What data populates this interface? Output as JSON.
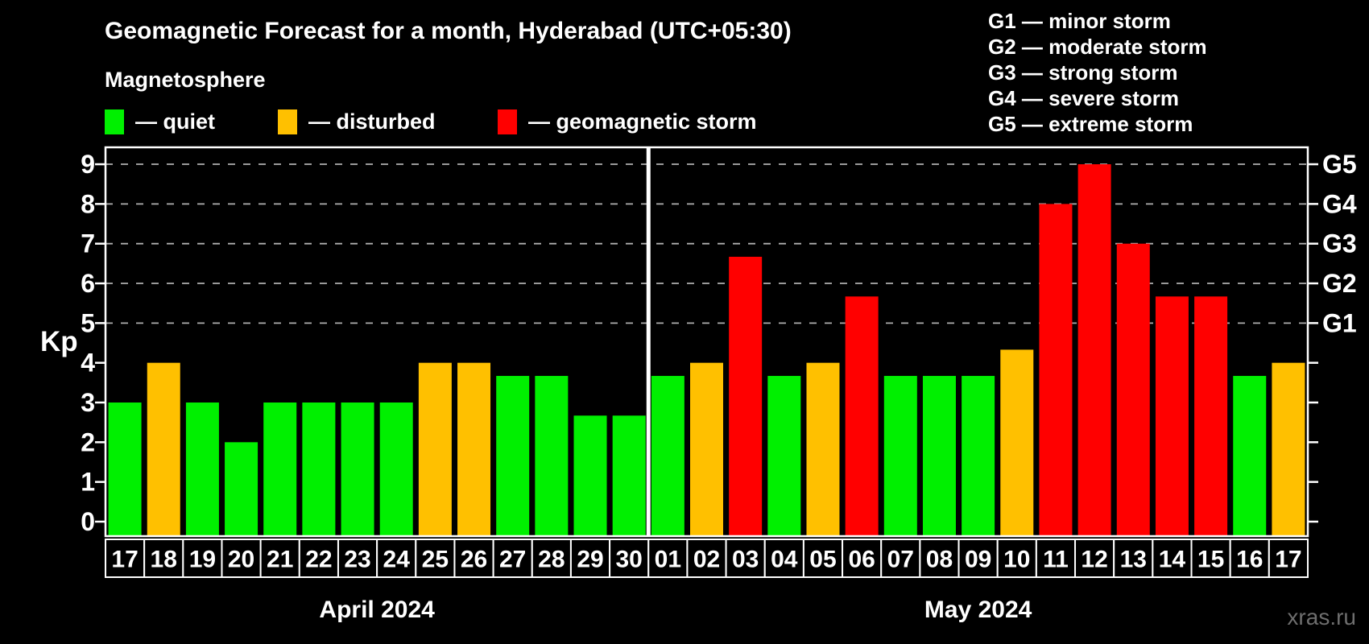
{
  "header": {
    "title": "Geomagnetic Forecast for a month, Hyderabad (UTC+05:30)",
    "subtitle": "Magnetosphere",
    "watermark": "xras.ru"
  },
  "legend": {
    "items": [
      {
        "name": "quiet",
        "label": "— quiet",
        "color": "#00f000"
      },
      {
        "name": "disturbed",
        "label": "— disturbed",
        "color": "#ffc000"
      },
      {
        "name": "storm",
        "label": "— geomagnetic storm",
        "color": "#ff0000"
      }
    ]
  },
  "g_legend": {
    "lines": [
      "G1 — minor storm",
      "G2 — moderate storm",
      "G3 — strong storm",
      "G4 — severe storm",
      "G5 — extreme storm"
    ]
  },
  "colors": {
    "quiet": "#00f000",
    "disturbed": "#ffc000",
    "storm": "#ff0000",
    "grid": "#b0b0b0",
    "axis": "#ffffff",
    "text": "#ffffff",
    "watermark": "#6e6e6e",
    "background": "#000000"
  },
  "chart_data": {
    "type": "bar",
    "title": "Geomagnetic Forecast for a month, Hyderabad (UTC+05:30)",
    "ylabel": "Kp",
    "ylim": [
      0,
      9
    ],
    "y_ticks": [
      0,
      1,
      2,
      3,
      4,
      5,
      6,
      7,
      8,
      9
    ],
    "grid_kp": [
      5,
      6,
      7,
      8,
      9
    ],
    "right_axis_labels": [
      {
        "label": "G1",
        "kp": 5
      },
      {
        "label": "G2",
        "kp": 6
      },
      {
        "label": "G3",
        "kp": 7
      },
      {
        "label": "G4",
        "kp": 8
      },
      {
        "label": "G5",
        "kp": 9
      }
    ],
    "months": [
      {
        "label": "April 2024",
        "days": 14
      },
      {
        "label": "May 2024",
        "days": 17
      }
    ],
    "bars": [
      {
        "day": "17",
        "month": "April 2024",
        "value": 3.0,
        "status": "quiet"
      },
      {
        "day": "18",
        "month": "April 2024",
        "value": 4.0,
        "status": "disturbed"
      },
      {
        "day": "19",
        "month": "April 2024",
        "value": 3.0,
        "status": "quiet"
      },
      {
        "day": "20",
        "month": "April 2024",
        "value": 2.0,
        "status": "quiet"
      },
      {
        "day": "21",
        "month": "April 2024",
        "value": 3.0,
        "status": "quiet"
      },
      {
        "day": "22",
        "month": "April 2024",
        "value": 3.0,
        "status": "quiet"
      },
      {
        "day": "23",
        "month": "April 2024",
        "value": 3.0,
        "status": "quiet"
      },
      {
        "day": "24",
        "month": "April 2024",
        "value": 3.0,
        "status": "quiet"
      },
      {
        "day": "25",
        "month": "April 2024",
        "value": 4.0,
        "status": "disturbed"
      },
      {
        "day": "26",
        "month": "April 2024",
        "value": 4.0,
        "status": "disturbed"
      },
      {
        "day": "27",
        "month": "April 2024",
        "value": 3.67,
        "status": "quiet"
      },
      {
        "day": "28",
        "month": "April 2024",
        "value": 3.67,
        "status": "quiet"
      },
      {
        "day": "29",
        "month": "April 2024",
        "value": 2.67,
        "status": "quiet"
      },
      {
        "day": "30",
        "month": "April 2024",
        "value": 2.67,
        "status": "quiet"
      },
      {
        "day": "01",
        "month": "May 2024",
        "value": 3.67,
        "status": "quiet"
      },
      {
        "day": "02",
        "month": "May 2024",
        "value": 4.0,
        "status": "disturbed"
      },
      {
        "day": "03",
        "month": "May 2024",
        "value": 6.67,
        "status": "storm"
      },
      {
        "day": "04",
        "month": "May 2024",
        "value": 3.67,
        "status": "quiet"
      },
      {
        "day": "05",
        "month": "May 2024",
        "value": 4.0,
        "status": "disturbed"
      },
      {
        "day": "06",
        "month": "May 2024",
        "value": 5.67,
        "status": "storm"
      },
      {
        "day": "07",
        "month": "May 2024",
        "value": 3.67,
        "status": "quiet"
      },
      {
        "day": "08",
        "month": "May 2024",
        "value": 3.67,
        "status": "quiet"
      },
      {
        "day": "09",
        "month": "May 2024",
        "value": 3.67,
        "status": "quiet"
      },
      {
        "day": "10",
        "month": "May 2024",
        "value": 4.33,
        "status": "disturbed"
      },
      {
        "day": "11",
        "month": "May 2024",
        "value": 8.0,
        "status": "storm"
      },
      {
        "day": "12",
        "month": "May 2024",
        "value": 9.0,
        "status": "storm"
      },
      {
        "day": "13",
        "month": "May 2024",
        "value": 7.0,
        "status": "storm"
      },
      {
        "day": "14",
        "month": "May 2024",
        "value": 5.67,
        "status": "storm"
      },
      {
        "day": "15",
        "month": "May 2024",
        "value": 5.67,
        "status": "storm"
      },
      {
        "day": "16",
        "month": "May 2024",
        "value": 3.67,
        "status": "quiet"
      },
      {
        "day": "17",
        "month": "May 2024",
        "value": 4.0,
        "status": "disturbed"
      }
    ]
  }
}
